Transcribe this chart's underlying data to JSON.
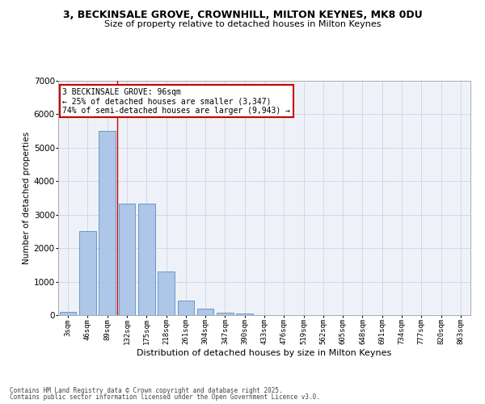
{
  "title_line1": "3, BECKINSALE GROVE, CROWNHILL, MILTON KEYNES, MK8 0DU",
  "title_line2": "Size of property relative to detached houses in Milton Keynes",
  "xlabel": "Distribution of detached houses by size in Milton Keynes",
  "ylabel": "Number of detached properties",
  "categories": [
    "3sqm",
    "46sqm",
    "89sqm",
    "132sqm",
    "175sqm",
    "218sqm",
    "261sqm",
    "304sqm",
    "347sqm",
    "390sqm",
    "433sqm",
    "476sqm",
    "519sqm",
    "562sqm",
    "605sqm",
    "648sqm",
    "691sqm",
    "734sqm",
    "777sqm",
    "820sqm",
    "863sqm"
  ],
  "values": [
    100,
    2500,
    5500,
    3330,
    3330,
    1300,
    430,
    200,
    70,
    50,
    0,
    0,
    0,
    0,
    0,
    0,
    0,
    0,
    0,
    0,
    0
  ],
  "bar_color": "#aec6e8",
  "bar_edge_color": "#5a8fc2",
  "grid_color": "#d0d8e8",
  "bg_color": "#eef2f8",
  "vline_color": "#cc0000",
  "vline_x": 2.5,
  "annotation_text": "3 BECKINSALE GROVE: 96sqm\n← 25% of detached houses are smaller (3,347)\n74% of semi-detached houses are larger (9,943) →",
  "annotation_box_color": "#cc0000",
  "ylim": [
    0,
    7000
  ],
  "yticks": [
    0,
    1000,
    2000,
    3000,
    4000,
    5000,
    6000,
    7000
  ],
  "footer_line1": "Contains HM Land Registry data © Crown copyright and database right 2025.",
  "footer_line2": "Contains public sector information licensed under the Open Government Licence v3.0."
}
